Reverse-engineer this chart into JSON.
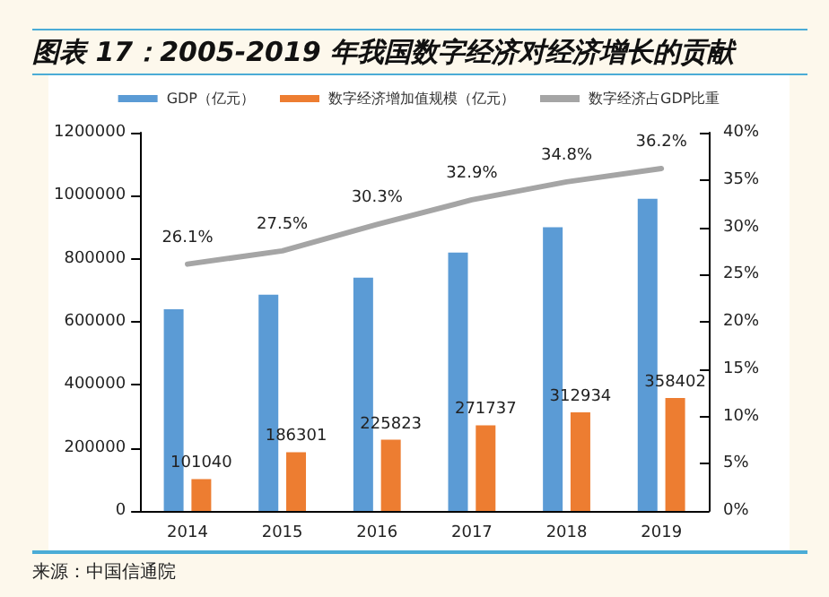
{
  "chart_data": {
    "type": "bar",
    "title": "图表 17：2005-2019 年我国数字经济对经济增长的贡献",
    "categories": [
      "2014",
      "2015",
      "2016",
      "2017",
      "2018",
      "2019"
    ],
    "series": [
      {
        "name": "GDP（亿元）",
        "color": "#5b9bd5",
        "values": [
          640000,
          686000,
          740000,
          820000,
          900000,
          990000
        ]
      },
      {
        "name": "数字经济增加值规模（亿元）",
        "color": "#ed7d31",
        "values": [
          101040,
          186301,
          225823,
          271737,
          312934,
          358402
        ],
        "value_labels": [
          "101040",
          "186301",
          "225823",
          "271737",
          "312934",
          "358402"
        ]
      },
      {
        "name": "数字经济占GDP比重",
        "type": "line",
        "axis": "y2",
        "color": "#a5a5a5",
        "marker": "none",
        "values": [
          26.1,
          27.5,
          30.3,
          32.9,
          34.8,
          36.2
        ],
        "value_labels": [
          "26.1%",
          "27.5%",
          "30.3%",
          "32.9%",
          "34.8%",
          "36.2%"
        ]
      }
    ],
    "ylim": [
      0,
      1200000
    ],
    "yticks": [
      0,
      200000,
      400000,
      600000,
      800000,
      1000000,
      1200000
    ],
    "y2lim": [
      0,
      40
    ],
    "y2ticks": [
      {
        "value": 0,
        "label": "0%"
      },
      {
        "value": 5,
        "label": "5%"
      },
      {
        "value": 10,
        "label": "10%"
      },
      {
        "value": 15,
        "label": "15%"
      },
      {
        "value": 20,
        "label": "20%"
      },
      {
        "value": 25,
        "label": "25%"
      },
      {
        "value": 30,
        "label": "30%"
      },
      {
        "value": 35,
        "label": "35%"
      },
      {
        "value": 40,
        "label": "40%"
      }
    ],
    "grid": false,
    "legend": "top",
    "annotations": [
      "来源：中国信通院"
    ]
  }
}
